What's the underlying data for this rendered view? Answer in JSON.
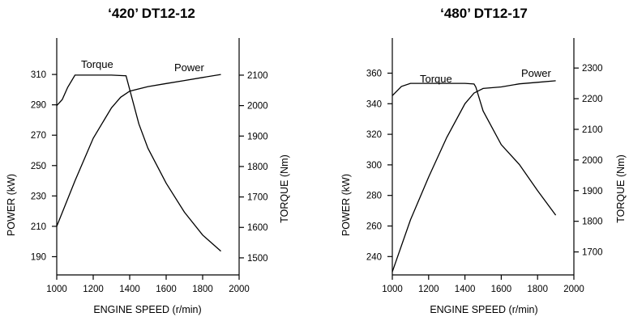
{
  "chart_data": [
    {
      "type": "line",
      "title": "‘420’ DT12-12",
      "xlabel": "ENGINE SPEED (r/min)",
      "ylabel_left": "POWER (kW)",
      "ylabel_right": "TORQUE (Nm)",
      "x_ticks": [
        1000,
        1200,
        1400,
        1600,
        1800,
        2000
      ],
      "xlim": [
        1000,
        2000
      ],
      "left_ticks": [
        190,
        210,
        230,
        250,
        270,
        290,
        310
      ],
      "left_ylim": [
        178,
        334
      ],
      "right_ticks": [
        1500,
        1600,
        1700,
        1800,
        1900,
        2000,
        2100
      ],
      "right_ylim": [
        1444,
        2222
      ],
      "grid": false,
      "series": [
        {
          "name": "Torque",
          "axis": "right",
          "x": [
            1000,
            1030,
            1060,
            1100,
            1200,
            1300,
            1380,
            1450,
            1500,
            1600,
            1700,
            1800,
            1900
          ],
          "y": [
            2000,
            2020,
            2060,
            2100,
            2100,
            2100,
            2098,
            1940,
            1860,
            1745,
            1650,
            1575,
            1522
          ]
        },
        {
          "name": "Power",
          "axis": "left",
          "x": [
            1000,
            1100,
            1200,
            1300,
            1350,
            1400,
            1500,
            1600,
            1700,
            1800,
            1900
          ],
          "y": [
            210,
            240,
            268,
            288,
            295,
            299,
            302,
            304,
            306,
            308,
            310
          ]
        }
      ]
    },
    {
      "type": "line",
      "title": "‘480’ DT12-17",
      "xlabel": "ENGINE SPEED (r/min)",
      "ylabel_left": "POWER (kW)",
      "ylabel_right": "TORQUE (Nm)",
      "x_ticks": [
        1000,
        1200,
        1400,
        1600,
        1800,
        2000
      ],
      "xlim": [
        1000,
        2000
      ],
      "left_ticks": [
        240,
        260,
        280,
        300,
        320,
        340,
        360
      ],
      "left_ylim": [
        228,
        383
      ],
      "right_ticks": [
        1700,
        1800,
        1900,
        2000,
        2100,
        2200,
        2300
      ],
      "right_ylim": [
        1625,
        2398
      ],
      "grid": false,
      "series": [
        {
          "name": "Torque",
          "axis": "right",
          "x": [
            1000,
            1050,
            1100,
            1200,
            1300,
            1400,
            1450,
            1460,
            1500,
            1600,
            1700,
            1800,
            1900
          ],
          "y": [
            2210,
            2240,
            2250,
            2250,
            2250,
            2250,
            2248,
            2238,
            2160,
            2050,
            1985,
            1900,
            1820
          ]
        },
        {
          "name": "Power",
          "axis": "left",
          "x": [
            1000,
            1100,
            1200,
            1300,
            1400,
            1450,
            1500,
            1600,
            1700,
            1800,
            1900
          ],
          "y": [
            230,
            264,
            292,
            318,
            340,
            347,
            350,
            351,
            353,
            354,
            355
          ]
        }
      ]
    }
  ]
}
